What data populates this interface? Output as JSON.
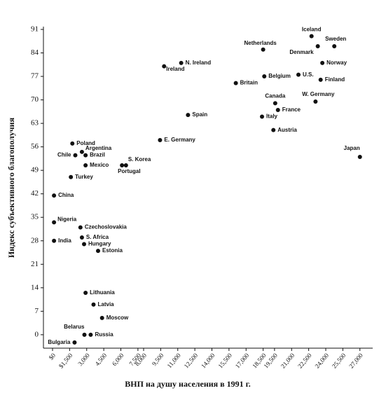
{
  "chart_data": {
    "type": "scatter",
    "xlabel": "ВНП на душу населения в 1991 г.",
    "ylabel": "Индекс субъективного благополучия",
    "labels": [
      "Iceland",
      "Netherlands",
      "Sweden",
      "Denmark",
      "Norway",
      "Finland",
      "U.S.",
      "Belgium",
      "Britain",
      "W. Germany",
      "Canada",
      "France",
      "Italy",
      "Austria",
      "Japan",
      "N. Ireland",
      "Ireland",
      "Spain",
      "E. Germany",
      "S. Korea",
      "Portugal",
      "Poland",
      "Argentina",
      "Chile",
      "Brazil",
      "Mexico",
      "Turkey",
      "China",
      "Nigeria",
      "India",
      "Czechoslovakia",
      "S. Africa",
      "Hungary",
      "Estonia",
      "Lithuania",
      "Latvia",
      "Moscow",
      "Belarus",
      "Russia",
      "Bulgaria"
    ],
    "x": [
      22750,
      18500,
      24750,
      23300,
      23700,
      23550,
      21600,
      18600,
      16100,
      23100,
      19560,
      19800,
      18400,
      19400,
      27000,
      11300,
      9800,
      11900,
      9440,
      6450,
      6100,
      1740,
      2580,
      2000,
      2900,
      2900,
      1610,
      130,
      130,
      130,
      2450,
      2580,
      2770,
      4000,
      2900,
      3600,
      4350,
      2800,
      3350,
      1935
    ],
    "y": [
      89,
      85,
      86,
      86,
      81,
      76,
      77.5,
      77,
      75,
      69.5,
      69,
      67,
      65,
      61,
      53,
      81,
      80,
      65.5,
      58,
      50.5,
      50.5,
      57,
      54.5,
      53.5,
      53.5,
      50.5,
      47,
      41.5,
      33.5,
      28,
      32,
      29,
      27,
      25,
      12.5,
      9,
      5,
      0,
      0,
      -2.3
    ],
    "color": "#111111",
    "xlim": [
      -800,
      28000
    ],
    "ylim": [
      -4,
      91
    ],
    "yticks": [
      0,
      7,
      14,
      21,
      28,
      35,
      42,
      49,
      56,
      63,
      70,
      77,
      84,
      91
    ],
    "xticks": [
      {
        "value": 0,
        "label": "$0"
      },
      {
        "value": 1500,
        "label": "$1,500"
      },
      {
        "value": 3000,
        "label": "3,000"
      },
      {
        "value": 4500,
        "label": "4,500"
      },
      {
        "value": 6000,
        "label": "6,000"
      },
      {
        "value": 7500,
        "label": "7,500"
      },
      {
        "value": 8000,
        "label": "8,000"
      },
      {
        "value": 9500,
        "label": "9,500"
      },
      {
        "value": 11000,
        "label": "11,000"
      },
      {
        "value": 12500,
        "label": "12,500"
      },
      {
        "value": 14000,
        "label": "14,000"
      },
      {
        "value": 15500,
        "label": "15,500"
      },
      {
        "value": 17000,
        "label": "17,000"
      },
      {
        "value": 18500,
        "label": "18,500"
      },
      {
        "value": 19500,
        "label": "19,500"
      },
      {
        "value": 21000,
        "label": "21,000"
      },
      {
        "value": 22500,
        "label": "22,500"
      },
      {
        "value": 24000,
        "label": "24,000"
      },
      {
        "value": 25500,
        "label": "25,500"
      },
      {
        "value": 27000,
        "label": "27,000"
      }
    ]
  }
}
